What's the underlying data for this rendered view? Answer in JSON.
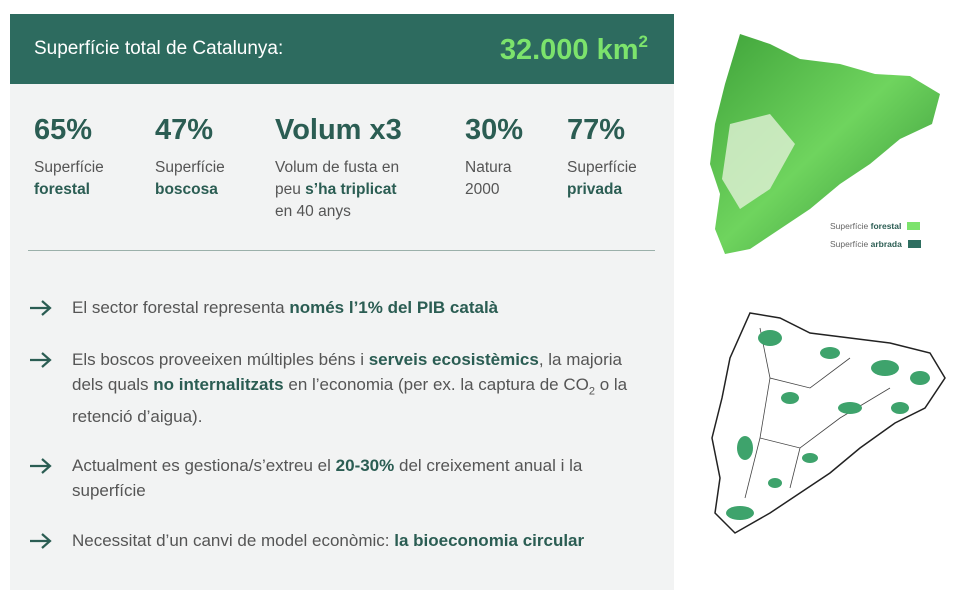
{
  "header": {
    "label": "Superfície total de Catalunya:",
    "value": [
      {
        "text": "32.000 km"
      },
      {
        "text": "2",
        "sup": true
      }
    ]
  },
  "stats": [
    {
      "value": "65%",
      "label": [
        [
          {
            "text": "Superfície"
          }
        ],
        [
          {
            "text": "forestal",
            "bold": true
          }
        ]
      ]
    },
    {
      "value": "47%",
      "label": [
        [
          {
            "text": "Superfície"
          }
        ],
        [
          {
            "text": "boscosa",
            "bold": true
          }
        ]
      ]
    },
    {
      "value": "Volum x3",
      "label": [
        [
          {
            "text": "Volum de fusta en"
          }
        ],
        [
          {
            "text": "peu "
          },
          {
            "text": "s’ha triplicat",
            "bold": true
          }
        ],
        [
          {
            "text": "en 40 anys"
          }
        ]
      ]
    },
    {
      "value": "30%",
      "label": [
        [
          {
            "text": "Natura"
          }
        ],
        [
          {
            "text": "2000"
          }
        ]
      ]
    },
    {
      "value": "77%",
      "label": [
        [
          {
            "text": "Superfície"
          }
        ],
        [
          {
            "text": "privada",
            "bold": true
          }
        ]
      ]
    }
  ],
  "bullets": [
    [
      {
        "text": "El sector forestal representa "
      },
      {
        "text": "només l’1% del PIB català",
        "bold": true
      }
    ],
    [
      {
        "text": "Els boscos proveeixen múltiples béns i "
      },
      {
        "text": "serveis ecosistèmics",
        "bold": true
      },
      {
        "text": ", la majoria dels quals "
      },
      {
        "text": "no internalitzats",
        "bold": true
      },
      {
        "text": " en l’economia (per ex. la captura de CO"
      },
      {
        "text": "2",
        "sub": true
      },
      {
        "text": " o la retenció d’aigua)."
      }
    ],
    [
      {
        "text": "Actualment es gestiona/s’extreu el "
      },
      {
        "text": "20-30%",
        "bold": true
      },
      {
        "text": " del creixement anual i la superfície"
      }
    ],
    [
      {
        "text": "Necessitat d’un canvi de model econòmic: "
      },
      {
        "text": "la bioeconomia circular",
        "bold": true
      }
    ]
  ],
  "map_legend": [
    {
      "parts": [
        {
          "text": "Superfície "
        },
        {
          "text": "forestal",
          "bold": true
        }
      ],
      "color": "#7ce36c"
    },
    {
      "parts": [
        {
          "text": "Superfície "
        },
        {
          "text": "arbrada",
          "bold": true
        }
      ],
      "color": "#2e6e60"
    }
  ]
}
